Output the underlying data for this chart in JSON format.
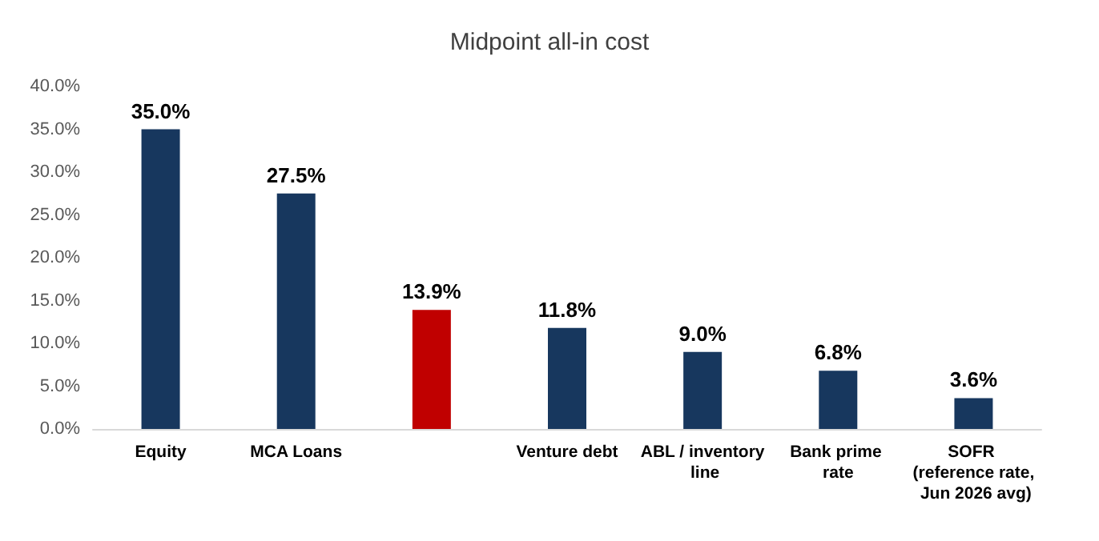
{
  "chart_data": {
    "type": "bar",
    "title": "Midpoint all-in cost",
    "categories": [
      "Equity",
      "MCA Loans",
      null,
      "Venture debt",
      "ABL / inventory line",
      "Bank prime rate",
      "SOFR (reference rate, Jun 2026 avg)"
    ],
    "values": [
      35.0,
      27.5,
      13.9,
      11.8,
      9.0,
      6.8,
      3.6
    ],
    "colors": [
      "#17375e",
      "#17375e",
      "#c00000",
      "#17375e",
      "#17375e",
      "#17375e",
      "#17375e"
    ],
    "value_labels": [
      "35.0%",
      "27.5%",
      "13.9%",
      "11.8%",
      "9.0%",
      "6.8%",
      "3.6%"
    ],
    "ylim": [
      0,
      40
    ],
    "yticks": [
      {
        "value": 0,
        "label": "0.0%"
      },
      {
        "value": 5,
        "label": "5.0%"
      },
      {
        "value": 10,
        "label": "10.0%"
      },
      {
        "value": 15,
        "label": "15.0%"
      },
      {
        "value": 20,
        "label": "20.0%"
      },
      {
        "value": 25,
        "label": "25.0%"
      },
      {
        "value": 30,
        "label": "30.0%"
      },
      {
        "value": 35,
        "label": "35.0%"
      },
      {
        "value": 40,
        "label": "40.0%"
      }
    ],
    "grid": false
  }
}
